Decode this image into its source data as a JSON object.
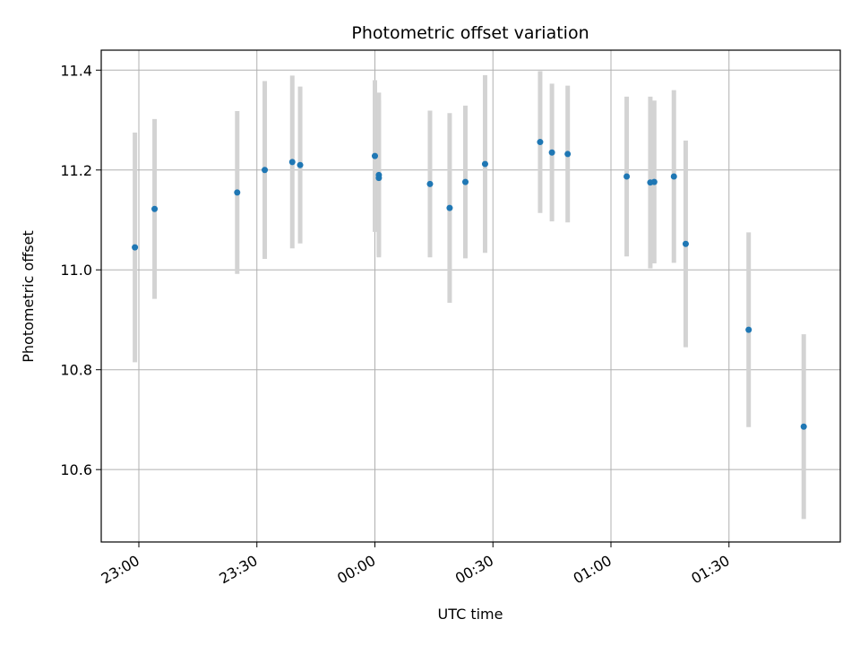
{
  "chart_data": {
    "type": "scatter",
    "title": "Photometric offset variation",
    "xlabel": "UTC time",
    "ylabel": "Photometric offset",
    "x_tick_labels": [
      "23:00",
      "23:30",
      "00:00",
      "00:30",
      "01:00",
      "01:30"
    ],
    "y_tick_labels": [
      "10.6",
      "10.8",
      "11.0",
      "11.2",
      "11.4"
    ],
    "y_ticks": [
      10.6,
      10.8,
      11.0,
      11.2,
      11.4
    ],
    "ylim": [
      10.455,
      11.44
    ],
    "grid": true,
    "errorbar_color": "#d3d3d3",
    "point_color": "#1f77b4",
    "points": [
      {
        "x": "22:59",
        "y": 11.045,
        "yerr": 0.23
      },
      {
        "x": "23:04",
        "y": 11.122,
        "yerr": 0.18
      },
      {
        "x": "23:25",
        "y": 11.155,
        "yerr": 0.163
      },
      {
        "x": "23:32",
        "y": 11.2,
        "yerr": 0.178
      },
      {
        "x": "23:39",
        "y": 11.216,
        "yerr": 0.173
      },
      {
        "x": "23:41",
        "y": 11.21,
        "yerr": 0.157
      },
      {
        "x": "00:00",
        "y": 11.228,
        "yerr": 0.152
      },
      {
        "x": "00:01",
        "y": 11.19,
        "yerr": 0.165
      },
      {
        "x": "00:01",
        "y": 11.184,
        "yerr": 0.155
      },
      {
        "x": "00:14",
        "y": 11.172,
        "yerr": 0.147
      },
      {
        "x": "00:19",
        "y": 11.124,
        "yerr": 0.19
      },
      {
        "x": "00:23",
        "y": 11.176,
        "yerr": 0.153
      },
      {
        "x": "00:28",
        "y": 11.212,
        "yerr": 0.178
      },
      {
        "x": "00:42",
        "y": 11.256,
        "yerr": 0.142
      },
      {
        "x": "00:45",
        "y": 11.235,
        "yerr": 0.138
      },
      {
        "x": "00:49",
        "y": 11.232,
        "yerr": 0.137
      },
      {
        "x": "01:04",
        "y": 11.187,
        "yerr": 0.16
      },
      {
        "x": "01:10",
        "y": 11.175,
        "yerr": 0.172
      },
      {
        "x": "01:11",
        "y": 11.176,
        "yerr": 0.163
      },
      {
        "x": "01:16",
        "y": 11.187,
        "yerr": 0.173
      },
      {
        "x": "01:19",
        "y": 11.052,
        "yerr": 0.207
      },
      {
        "x": "01:35",
        "y": 10.88,
        "yerr": 0.195
      },
      {
        "x": "01:49",
        "y": 10.686,
        "yerr": 0.185
      }
    ]
  }
}
